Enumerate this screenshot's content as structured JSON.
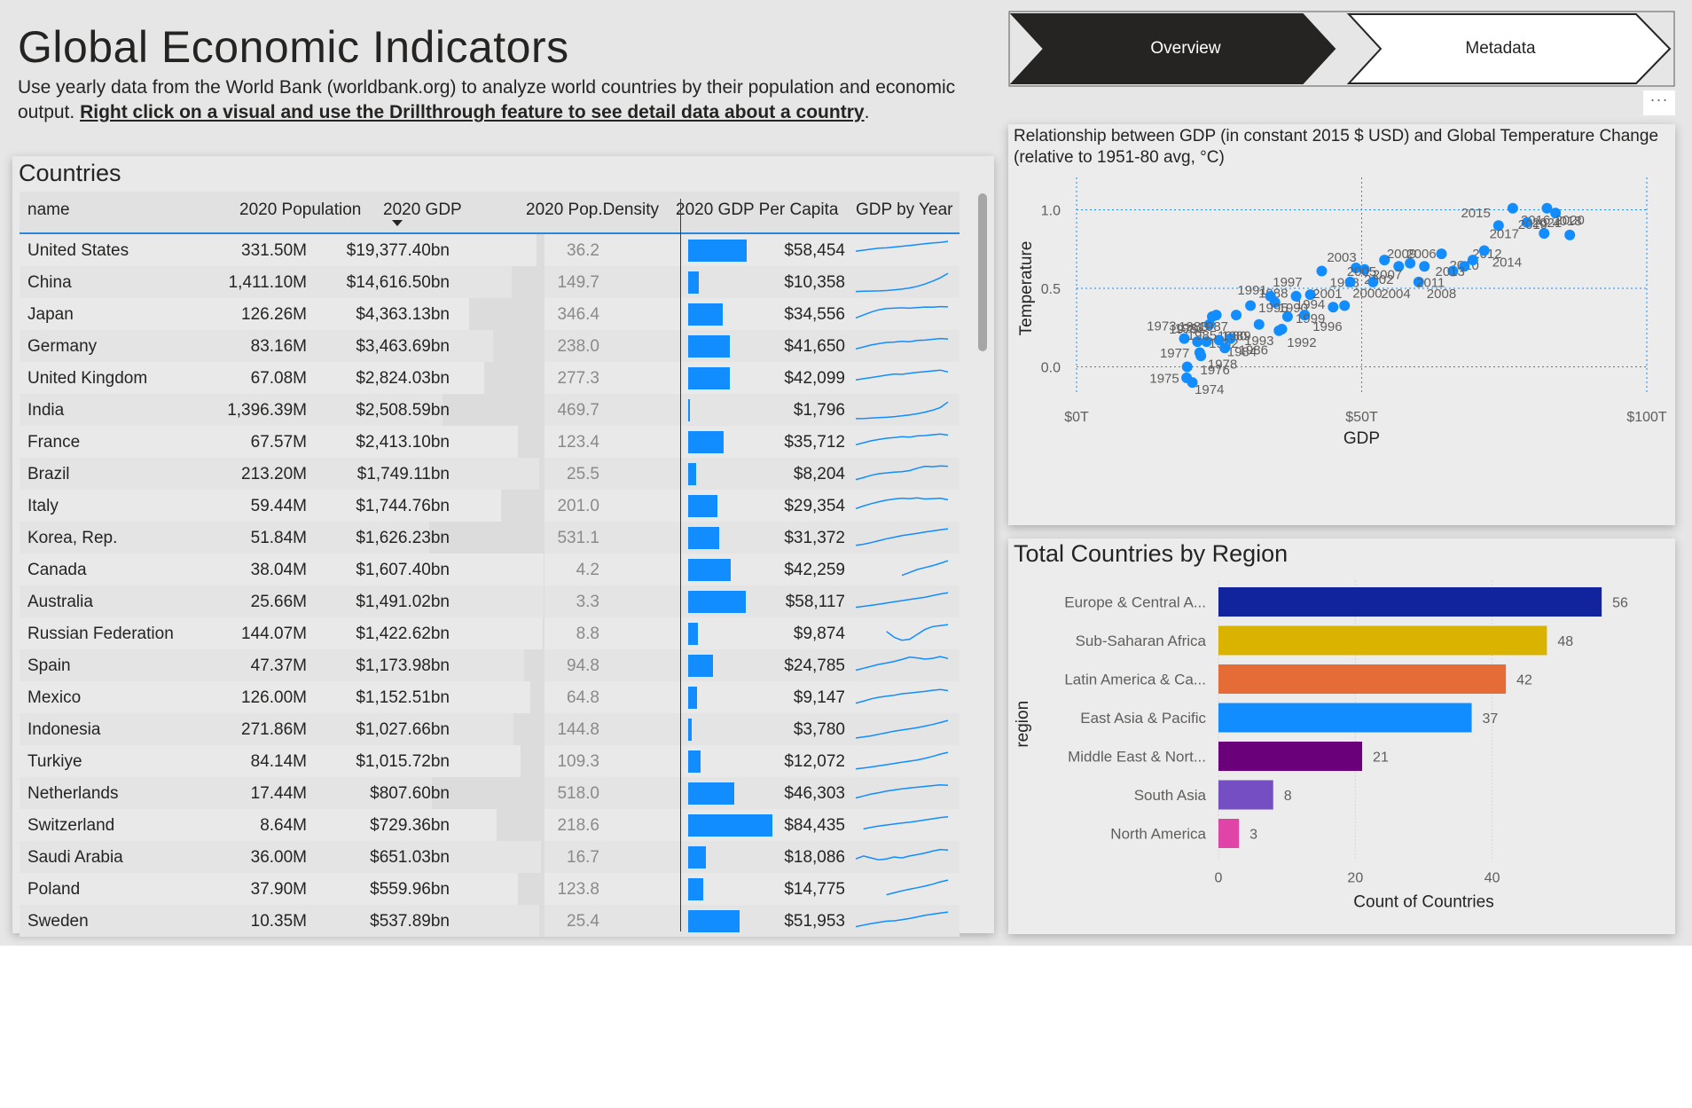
{
  "page": {
    "title": "Global Economic Indicators",
    "subtitle_plain": "Use yearly data from the World Bank (worldbank.org) to analyze world countries by their population and economic output. ",
    "subtitle_link": "Right click on a visual and use the Drillthrough feature to see detail data about a country",
    "subtitle_end": "."
  },
  "nav": {
    "overview_label": "Overview",
    "metadata_label": "Metadata",
    "more_label": "···"
  },
  "table": {
    "title": "Countries",
    "headers": {
      "name": "name",
      "population": "2020 Population",
      "gdp": "2020 GDP",
      "density": "2020 Pop.Density",
      "per_capita": "2020 GDP Per Capita",
      "gdp_by_year": "GDP by Year"
    },
    "accent_color": "#118dff",
    "rows": [
      {
        "name": "United States",
        "population": "331.50M",
        "gdp": "$19,377.40bn",
        "density": "36.2",
        "density_value": 36.2,
        "per_capita": "$58,454",
        "per_capita_value": 58454,
        "spark": [
          0.45,
          0.5,
          0.55,
          0.6,
          0.62,
          0.66,
          0.7,
          0.74,
          0.78,
          0.83,
          0.87,
          0.9,
          0.95
        ]
      },
      {
        "name": "China",
        "population": "1,411.10M",
        "gdp": "$14,616.50bn",
        "density": "149.7",
        "density_value": 149.7,
        "per_capita": "$10,358",
        "per_capita_value": 10358,
        "spark": [
          0.02,
          0.03,
          0.04,
          0.05,
          0.07,
          0.1,
          0.14,
          0.2,
          0.28,
          0.4,
          0.55,
          0.72,
          0.95
        ]
      },
      {
        "name": "Japan",
        "population": "126.26M",
        "gdp": "$4,363.13bn",
        "density": "346.4",
        "density_value": 346.4,
        "per_capita": "$34,556",
        "per_capita_value": 34556,
        "spark": [
          0.3,
          0.45,
          0.6,
          0.72,
          0.78,
          0.8,
          0.82,
          0.8,
          0.83,
          0.86,
          0.85,
          0.88,
          0.87
        ]
      },
      {
        "name": "Germany",
        "population": "83.16M",
        "gdp": "$3,463.69bn",
        "density": "238.0",
        "density_value": 238.0,
        "per_capita": "$41,650",
        "per_capita_value": 41650,
        "spark": [
          0.35,
          0.45,
          0.55,
          0.62,
          0.68,
          0.7,
          0.74,
          0.72,
          0.78,
          0.8,
          0.84,
          0.88,
          0.86
        ]
      },
      {
        "name": "United Kingdom",
        "population": "67.08M",
        "gdp": "$2,824.03bn",
        "density": "277.3",
        "density_value": 277.3,
        "per_capita": "$42,099",
        "per_capita_value": 42099,
        "spark": [
          0.4,
          0.46,
          0.52,
          0.58,
          0.64,
          0.7,
          0.68,
          0.74,
          0.78,
          0.82,
          0.86,
          0.9,
          0.8
        ]
      },
      {
        "name": "India",
        "population": "1,396.39M",
        "gdp": "$2,508.59bn",
        "density": "469.7",
        "density_value": 469.7,
        "per_capita": "$1,796",
        "per_capita_value": 1796,
        "spark": [
          0.05,
          0.06,
          0.08,
          0.1,
          0.12,
          0.15,
          0.19,
          0.24,
          0.3,
          0.38,
          0.48,
          0.62,
          0.9
        ]
      },
      {
        "name": "France",
        "population": "67.57M",
        "gdp": "$2,413.10bn",
        "density": "123.4",
        "density_value": 123.4,
        "per_capita": "$35,712",
        "per_capita_value": 35712,
        "spark": [
          0.35,
          0.45,
          0.55,
          0.62,
          0.68,
          0.72,
          0.76,
          0.74,
          0.8,
          0.82,
          0.86,
          0.9,
          0.84
        ]
      },
      {
        "name": "Brazil",
        "population": "213.20M",
        "gdp": "$1,749.11bn",
        "density": "25.5",
        "density_value": 25.5,
        "per_capita": "$8,204",
        "per_capita_value": 8204,
        "spark": [
          0.2,
          0.3,
          0.42,
          0.5,
          0.54,
          0.58,
          0.6,
          0.66,
          0.78,
          0.88,
          0.86,
          0.9,
          0.88
        ]
      },
      {
        "name": "Italy",
        "population": "59.44M",
        "gdp": "$1,744.76bn",
        "density": "201.0",
        "density_value": 201.0,
        "per_capita": "$29,354",
        "per_capita_value": 29354,
        "spark": [
          0.35,
          0.48,
          0.6,
          0.7,
          0.78,
          0.84,
          0.88,
          0.86,
          0.9,
          0.84,
          0.86,
          0.88,
          0.8
        ]
      },
      {
        "name": "Korea, Rep.",
        "population": "51.84M",
        "gdp": "$1,626.23bn",
        "density": "531.1",
        "density_value": 531.1,
        "per_capita": "$31,372",
        "per_capita_value": 31372,
        "spark": [
          0.1,
          0.16,
          0.24,
          0.34,
          0.44,
          0.52,
          0.6,
          0.66,
          0.72,
          0.78,
          0.84,
          0.9,
          0.95
        ]
      },
      {
        "name": "Canada",
        "population": "38.04M",
        "gdp": "$1,607.40bn",
        "density": "4.2",
        "density_value": 4.2,
        "per_capita": "$42,259",
        "per_capita_value": 42259,
        "spark": [
          null,
          null,
          null,
          null,
          null,
          null,
          0.2,
          0.35,
          0.5,
          0.6,
          0.7,
          0.82,
          0.95
        ]
      },
      {
        "name": "Australia",
        "population": "25.66M",
        "gdp": "$1,491.02bn",
        "density": "3.3",
        "density_value": 3.3,
        "per_capita": "$58,117",
        "per_capita_value": 58117,
        "spark": [
          0.2,
          0.25,
          0.3,
          0.36,
          0.42,
          0.48,
          0.54,
          0.6,
          0.66,
          0.72,
          0.8,
          0.88,
          0.95
        ]
      },
      {
        "name": "Russian Federation",
        "population": "144.07M",
        "gdp": "$1,422.62bn",
        "density": "8.8",
        "density_value": 8.8,
        "per_capita": "$9,874",
        "per_capita_value": 9874,
        "spark": [
          null,
          null,
          null,
          null,
          0.6,
          0.3,
          0.15,
          0.2,
          0.45,
          0.7,
          0.85,
          0.9,
          0.95
        ]
      },
      {
        "name": "Spain",
        "population": "47.37M",
        "gdp": "$1,173.98bn",
        "density": "94.8",
        "density_value": 94.8,
        "per_capita": "$24,785",
        "per_capita_value": 24785,
        "spark": [
          0.25,
          0.35,
          0.45,
          0.55,
          0.62,
          0.7,
          0.8,
          0.92,
          0.88,
          0.82,
          0.86,
          0.95,
          0.85
        ]
      },
      {
        "name": "Mexico",
        "population": "126.00M",
        "gdp": "$1,152.51bn",
        "density": "64.8",
        "density_value": 64.8,
        "per_capita": "$9,147",
        "per_capita_value": 9147,
        "spark": [
          0.2,
          0.3,
          0.42,
          0.5,
          0.56,
          0.6,
          0.68,
          0.72,
          0.76,
          0.8,
          0.86,
          0.9,
          0.84
        ]
      },
      {
        "name": "Indonesia",
        "population": "271.86M",
        "gdp": "$1,027.66bn",
        "density": "144.8",
        "density_value": 144.8,
        "per_capita": "$3,780",
        "per_capita_value": 3780,
        "spark": [
          0.05,
          0.1,
          0.16,
          0.24,
          0.32,
          0.4,
          0.46,
          0.52,
          0.58,
          0.66,
          0.74,
          0.84,
          0.95
        ]
      },
      {
        "name": "Turkiye",
        "population": "84.14M",
        "gdp": "$1,015.72bn",
        "density": "109.3",
        "density_value": 109.3,
        "per_capita": "$12,072",
        "per_capita_value": 12072,
        "spark": [
          0.1,
          0.15,
          0.2,
          0.26,
          0.32,
          0.38,
          0.44,
          0.5,
          0.56,
          0.64,
          0.74,
          0.86,
          0.95
        ]
      },
      {
        "name": "Netherlands",
        "population": "17.44M",
        "gdp": "$807.60bn",
        "density": "518.0",
        "density_value": 518.0,
        "per_capita": "$46,303",
        "per_capita_value": 46303,
        "spark": [
          0.25,
          0.35,
          0.45,
          0.52,
          0.6,
          0.66,
          0.72,
          0.76,
          0.8,
          0.84,
          0.88,
          0.92,
          0.9
        ]
      },
      {
        "name": "Switzerland",
        "population": "8.64M",
        "gdp": "$729.36bn",
        "density": "218.6",
        "density_value": 218.6,
        "per_capita": "$84,435",
        "per_capita_value": 84435,
        "spark": [
          null,
          0.3,
          0.38,
          0.45,
          0.5,
          0.55,
          0.6,
          0.64,
          0.7,
          0.76,
          0.82,
          0.88,
          0.92
        ]
      },
      {
        "name": "Saudi Arabia",
        "population": "36.00M",
        "gdp": "$651.03bn",
        "density": "16.7",
        "density_value": 16.7,
        "per_capita": "$18,086",
        "per_capita_value": 18086,
        "spark": [
          0.4,
          0.55,
          0.45,
          0.35,
          0.4,
          0.5,
          0.45,
          0.55,
          0.62,
          0.7,
          0.8,
          0.88,
          0.85
        ]
      },
      {
        "name": "Poland",
        "population": "37.90M",
        "gdp": "$559.96bn",
        "density": "123.8",
        "density_value": 123.8,
        "per_capita": "$14,775",
        "per_capita_value": 14775,
        "spark": [
          null,
          null,
          null,
          null,
          0.2,
          0.3,
          0.4,
          0.48,
          0.56,
          0.64,
          0.74,
          0.86,
          0.95
        ]
      },
      {
        "name": "Sweden",
        "population": "10.35M",
        "gdp": "$537.89bn",
        "density": "25.4",
        "density_value": 25.4,
        "per_capita": "$51,953",
        "per_capita_value": 51953,
        "spark": [
          0.2,
          0.28,
          0.36,
          0.42,
          0.48,
          0.5,
          0.56,
          0.62,
          0.7,
          0.78,
          0.84,
          0.9,
          0.95
        ]
      }
    ]
  },
  "scatter": {
    "title": "Relationship between GDP (in constant 2015 $ USD) and Global Temperature Change (relative to 1951-80 avg, °C)",
    "chart_data": {
      "type": "scatter",
      "xlabel": "GDP",
      "ylabel": "Temperature",
      "xlim": [
        0,
        100
      ],
      "ylim": [
        -0.15,
        1.15
      ],
      "xticks": [
        0,
        50,
        100
      ],
      "xtick_labels": [
        "$0T",
        "$50T",
        "$100T"
      ],
      "yticks": [
        0,
        0.5,
        1
      ],
      "ytick_labels": [
        "0.0",
        "0.5",
        "1.0"
      ],
      "grid": true,
      "color": "#118dff",
      "points": [
        {
          "label": "1973",
          "x": 18.9,
          "y": 0.18
        },
        {
          "label": "1974",
          "x": 19.3,
          "y": -0.07
        },
        {
          "label": "1975",
          "x": 19.4,
          "y": 0.0
        },
        {
          "label": "1976",
          "x": 20.3,
          "y": -0.1
        },
        {
          "label": "1977",
          "x": 21.2,
          "y": 0.16
        },
        {
          "label": "1978",
          "x": 21.6,
          "y": 0.09
        },
        {
          "label": "1979",
          "x": 22.8,
          "y": 0.16
        },
        {
          "label": "1980",
          "x": 23.3,
          "y": 0.27
        },
        {
          "label": "1981",
          "x": 23.8,
          "y": 0.32
        },
        {
          "label": "1982",
          "x": 21.8,
          "y": 0.07
        },
        {
          "label": "1983",
          "x": 24.5,
          "y": 0.33
        },
        {
          "label": "1984",
          "x": 25.0,
          "y": 0.17
        },
        {
          "label": "1985",
          "x": 26.0,
          "y": 0.12
        },
        {
          "label": "1986",
          "x": 27.0,
          "y": 0.18
        },
        {
          "label": "1987",
          "x": 28.0,
          "y": 0.33
        },
        {
          "label": "1988",
          "x": 30.5,
          "y": 0.39
        },
        {
          "label": "1989",
          "x": 32.0,
          "y": 0.27
        },
        {
          "label": "1990",
          "x": 34.0,
          "y": 0.45
        },
        {
          "label": "1991",
          "x": 34.8,
          "y": 0.41
        },
        {
          "label": "1992",
          "x": 35.5,
          "y": 0.23
        },
        {
          "label": "1993",
          "x": 36.0,
          "y": 0.24
        },
        {
          "label": "1994",
          "x": 37.0,
          "y": 0.32
        },
        {
          "label": "1995",
          "x": 38.5,
          "y": 0.45
        },
        {
          "label": "1996",
          "x": 40.0,
          "y": 0.33
        },
        {
          "label": "1997",
          "x": 41.0,
          "y": 0.46
        },
        {
          "label": "1998",
          "x": 43.0,
          "y": 0.61
        },
        {
          "label": "1999",
          "x": 45.0,
          "y": 0.38
        },
        {
          "label": "2000",
          "x": 47.0,
          "y": 0.39
        },
        {
          "label": "2001",
          "x": 48.0,
          "y": 0.54
        },
        {
          "label": "2002",
          "x": 49.0,
          "y": 0.63
        },
        {
          "label": "2003",
          "x": 50.5,
          "y": 0.62
        },
        {
          "label": "2004",
          "x": 52.0,
          "y": 0.54
        },
        {
          "label": "2005",
          "x": 54.0,
          "y": 0.68
        },
        {
          "label": "2006",
          "x": 56.5,
          "y": 0.64
        },
        {
          "label": "2007",
          "x": 58.5,
          "y": 0.66
        },
        {
          "label": "2008",
          "x": 60.0,
          "y": 0.54
        },
        {
          "label": "2009",
          "x": 61.0,
          "y": 0.64
        },
        {
          "label": "2010",
          "x": 64.0,
          "y": 0.72
        },
        {
          "label": "2011",
          "x": 66.0,
          "y": 0.61
        },
        {
          "label": "2012",
          "x": 68.0,
          "y": 0.64
        },
        {
          "label": "2013",
          "x": 69.5,
          "y": 0.68
        },
        {
          "label": "2014",
          "x": 71.5,
          "y": 0.74
        },
        {
          "label": "2015",
          "x": 74.0,
          "y": 0.9
        },
        {
          "label": "2016",
          "x": 76.5,
          "y": 1.01
        },
        {
          "label": "2017",
          "x": 79.0,
          "y": 0.92
        },
        {
          "label": "2018",
          "x": 82.0,
          "y": 0.85
        },
        {
          "label": "2019",
          "x": 84.0,
          "y": 0.98
        },
        {
          "label": "2020",
          "x": 82.5,
          "y": 1.01
        },
        {
          "label": "2021",
          "x": 86.5,
          "y": 0.84
        }
      ]
    }
  },
  "regions": {
    "title": "Total Countries by Region",
    "chart_data": {
      "type": "bar",
      "orientation": "horizontal",
      "ylabel": "region",
      "xlabel": "Count of Countries",
      "xlim": [
        0,
        60
      ],
      "xticks": [
        0,
        20,
        40
      ],
      "grid": true,
      "categories": [
        "Europe & Central A...",
        "Sub-Saharan Africa",
        "Latin America & Ca...",
        "East Asia & Pacific",
        "Middle East & Nort...",
        "South Asia",
        "North America"
      ],
      "values": [
        56,
        48,
        42,
        37,
        21,
        8,
        3
      ],
      "colors": [
        "#12239e",
        "#d9b300",
        "#e66c37",
        "#118dff",
        "#6b007b",
        "#744ec2",
        "#e044a7"
      ]
    }
  }
}
